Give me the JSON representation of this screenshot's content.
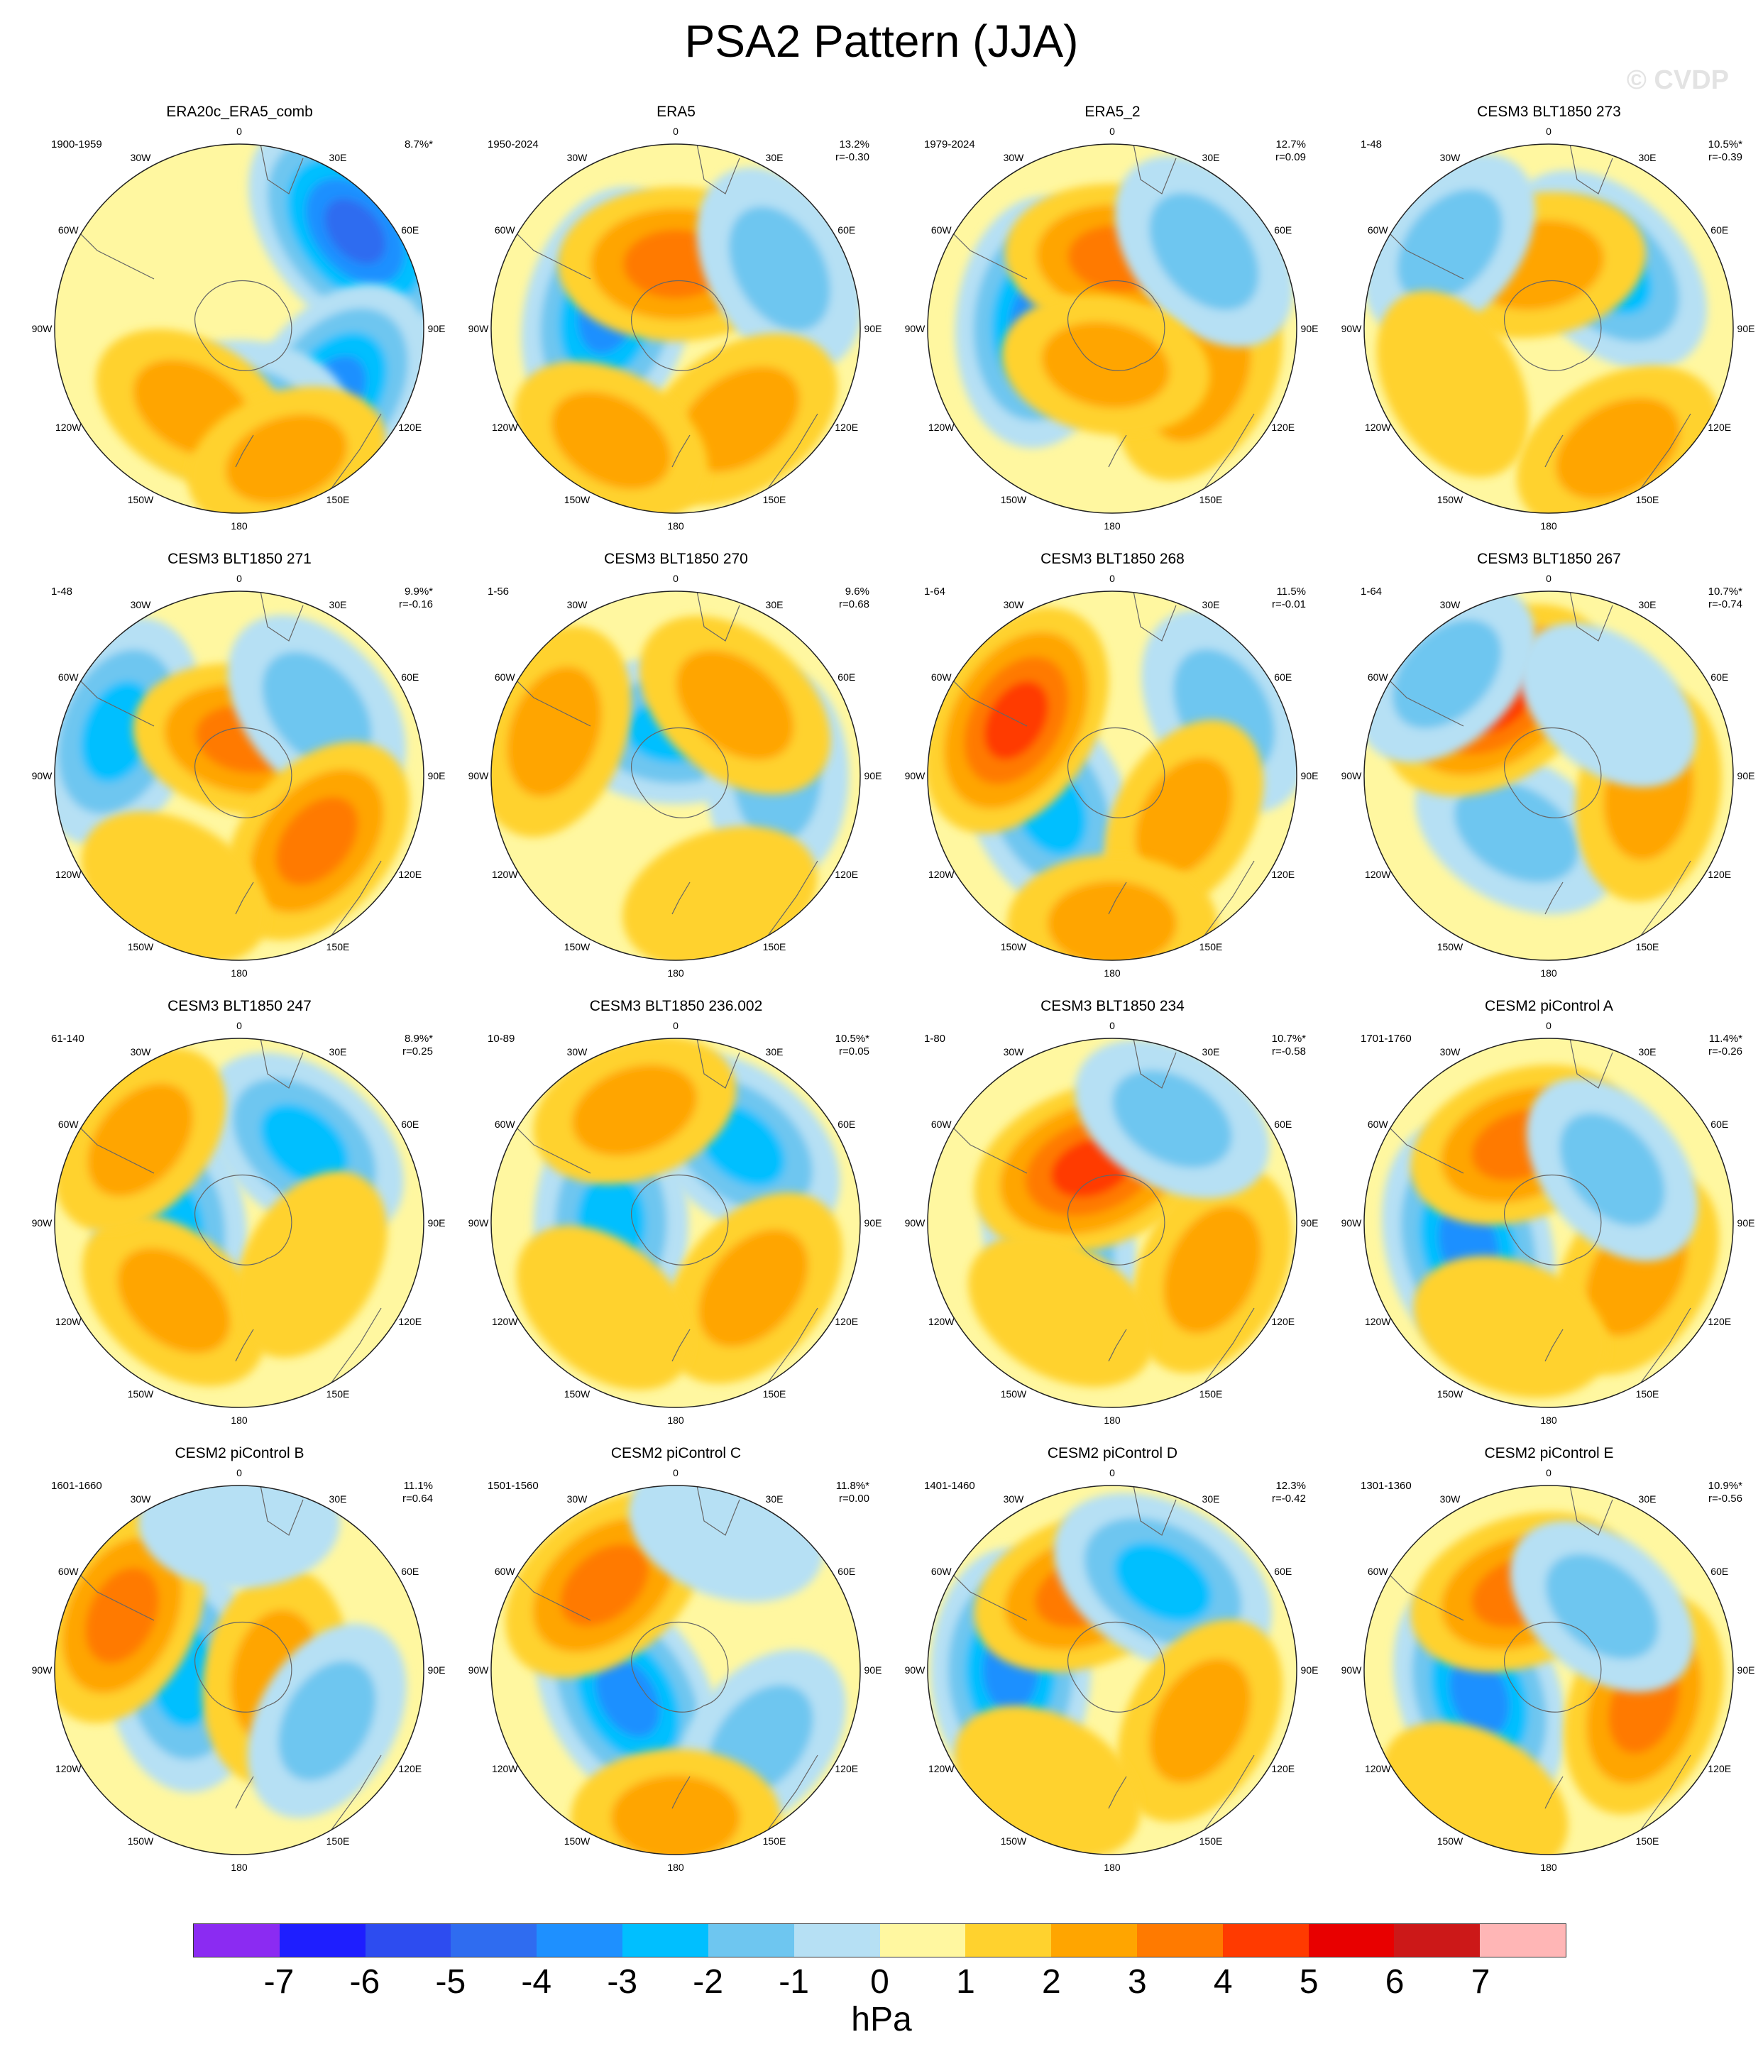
{
  "title": "PSA2 Pattern (JJA)",
  "watermark": "© CVDP",
  "longitude_labels": [
    "0",
    "30E",
    "60E",
    "90E",
    "120E",
    "150E",
    "180",
    "150W",
    "120W",
    "90W",
    "60W",
    "30W"
  ],
  "panels": [
    {
      "name": "ERA20c_ERA5_comb",
      "years": "1900-1959",
      "pct": "8.7%*",
      "r": "",
      "anomalies": [
        [
          130,
          0.82,
          -4.5
        ],
        [
          55,
          0.62,
          -3.5
        ],
        [
          0,
          0.45,
          -2
        ],
        [
          330,
          0.5,
          1.5
        ],
        [
          20,
          0.75,
          1.2
        ]
      ]
    },
    {
      "name": "ERA5",
      "years": "1950-2024",
      "pct": "13.2%",
      "r": "r=-0.30",
      "anomalies": [
        [
          255,
          0.38,
          -4
        ],
        [
          180,
          0.35,
          3
        ],
        [
          120,
          0.65,
          -2
        ],
        [
          35,
          0.6,
          2
        ],
        [
          330,
          0.7,
          1.5
        ]
      ]
    },
    {
      "name": "ERA5_2",
      "years": "1979-2024",
      "pct": "12.7%",
      "r": "r=0.09",
      "anomalies": [
        [
          265,
          0.4,
          -4
        ],
        [
          175,
          0.38,
          2.5
        ],
        [
          60,
          0.55,
          2
        ],
        [
          130,
          0.65,
          -2
        ],
        [
          350,
          0.2,
          1.5
        ]
      ]
    },
    {
      "name": "CESM3 BLT1850 273",
      "years": "1-48",
      "pct": "10.5%*",
      "r": "r=-0.39",
      "anomalies": [
        [
          135,
          0.45,
          -3
        ],
        [
          190,
          0.35,
          2
        ],
        [
          230,
          0.7,
          -1.5
        ],
        [
          30,
          0.75,
          2
        ],
        [
          300,
          0.6,
          1
        ]
      ]
    },
    {
      "name": "CESM3 BLT1850 271",
      "years": "1-48",
      "pct": "9.9%*",
      "r": "r=-0.16",
      "anomalies": [
        [
          250,
          0.7,
          -3
        ],
        [
          170,
          0.2,
          2.5
        ],
        [
          130,
          0.55,
          -2
        ],
        [
          50,
          0.55,
          2.5
        ],
        [
          330,
          0.7,
          1
        ]
      ]
    },
    {
      "name": "CESM3 BLT1850 270",
      "years": "1-56",
      "pct": "9.6%",
      "r": "r=0.68",
      "anomalies": [
        [
          180,
          0.25,
          -2.5
        ],
        [
          250,
          0.7,
          2
        ],
        [
          90,
          0.55,
          -2
        ],
        [
          140,
          0.5,
          2
        ],
        [
          20,
          0.7,
          1
        ]
      ]
    },
    {
      "name": "CESM3 BLT1850 268",
      "years": "1-64",
      "pct": "11.5%",
      "r": "r=-0.01",
      "anomalies": [
        [
          295,
          0.38,
          -3
        ],
        [
          240,
          0.6,
          3.5
        ],
        [
          120,
          0.7,
          -2
        ],
        [
          60,
          0.45,
          1.5
        ],
        [
          0,
          0.8,
          1.5
        ]
      ]
    },
    {
      "name": "CESM3 BLT1850 267",
      "years": "1-64",
      "pct": "10.7%*",
      "r": "r=-0.74",
      "anomalies": [
        [
          330,
          0.35,
          -2
        ],
        [
          215,
          0.5,
          3.5
        ],
        [
          80,
          0.55,
          2
        ],
        [
          225,
          0.78,
          -1.5
        ],
        [
          140,
          0.5,
          -1
        ]
      ]
    },
    {
      "name": "CESM3 BLT1850 247",
      "years": "61-140",
      "pct": "8.9%*",
      "r": "r=0.25",
      "anomalies": [
        [
          275,
          0.38,
          -3
        ],
        [
          140,
          0.55,
          -2.5
        ],
        [
          320,
          0.55,
          1.5
        ],
        [
          230,
          0.7,
          1.5
        ],
        [
          60,
          0.45,
          1
        ]
      ]
    },
    {
      "name": "CESM3 BLT1850 236.002",
      "years": "10-89",
      "pct": "10.5%*",
      "r": "r=0.05",
      "anomalies": [
        [
          270,
          0.35,
          -3
        ],
        [
          140,
          0.55,
          -2.5
        ],
        [
          50,
          0.55,
          2
        ],
        [
          200,
          0.65,
          1.5
        ],
        [
          320,
          0.6,
          1
        ]
      ]
    },
    {
      "name": "CESM3 BLT1850 234",
      "years": "1-80",
      "pct": "10.7%*",
      "r": "r=-0.58",
      "anomalies": [
        [
          285,
          0.3,
          -2.5
        ],
        [
          200,
          0.32,
          3.5
        ],
        [
          65,
          0.6,
          2
        ],
        [
          150,
          0.65,
          -1.5
        ],
        [
          330,
          0.55,
          1
        ]
      ]
    },
    {
      "name": "CESM2 piControl A",
      "years": "1701-1760",
      "pct": "11.4%*",
      "r": "r=-0.26",
      "anomalies": [
        [
          285,
          0.45,
          -4
        ],
        [
          200,
          0.45,
          2.5
        ],
        [
          60,
          0.55,
          2
        ],
        [
          130,
          0.45,
          -1.5
        ],
        [
          340,
          0.6,
          1
        ]
      ]
    },
    {
      "name": "CESM2 piControl B",
      "years": "1601-1660",
      "pct": "11.1%",
      "r": "r=0.64",
      "anomalies": [
        [
          275,
          0.3,
          -3
        ],
        [
          245,
          0.7,
          2.5
        ],
        [
          80,
          0.2,
          2
        ],
        [
          60,
          0.55,
          -1.5
        ],
        [
          180,
          0.8,
          -1
        ]
      ]
    },
    {
      "name": "CESM2 piControl C",
      "years": "1501-1560",
      "pct": "11.8%*",
      "r": "r=0.00",
      "anomalies": [
        [
          300,
          0.3,
          -3.5
        ],
        [
          220,
          0.6,
          2.5
        ],
        [
          160,
          0.8,
          -1
        ],
        [
          50,
          0.6,
          -1.5
        ],
        [
          0,
          0.8,
          1.5
        ]
      ]
    },
    {
      "name": "CESM2 piControl D",
      "years": "1401-1460",
      "pct": "12.3%",
      "r": "r=-0.42",
      "anomalies": [
        [
          270,
          0.55,
          -3.5
        ],
        [
          200,
          0.45,
          2.5
        ],
        [
          150,
          0.55,
          -3
        ],
        [
          60,
          0.55,
          2
        ],
        [
          330,
          0.7,
          1
        ]
      ]
    },
    {
      "name": "CESM2 piControl E",
      "years": "1301-1360",
      "pct": "10.9%*",
      "r": "r=-0.56",
      "anomalies": [
        [
          290,
          0.4,
          -3.5
        ],
        [
          200,
          0.45,
          2.5
        ],
        [
          70,
          0.55,
          2.5
        ],
        [
          140,
          0.45,
          -1.5
        ],
        [
          330,
          0.8,
          1
        ]
      ]
    }
  ],
  "colorbar": {
    "colors": [
      "#8B2BF2",
      "#1E1EFF",
      "#2D4CF0",
      "#2F6CF0",
      "#1E90FF",
      "#00BFFF",
      "#6EC6F0",
      "#B6E0F4",
      "#FFF7A0",
      "#FFD22E",
      "#FFA500",
      "#FF7A00",
      "#FF3A00",
      "#E80000",
      "#CC1818",
      "#FFB6B6"
    ],
    "labels": [
      "-7",
      "-6",
      "-5",
      "-4",
      "-3",
      "-2",
      "-1",
      "0",
      "1",
      "2",
      "3",
      "4",
      "5",
      "6",
      "7"
    ],
    "units": "hPa"
  }
}
